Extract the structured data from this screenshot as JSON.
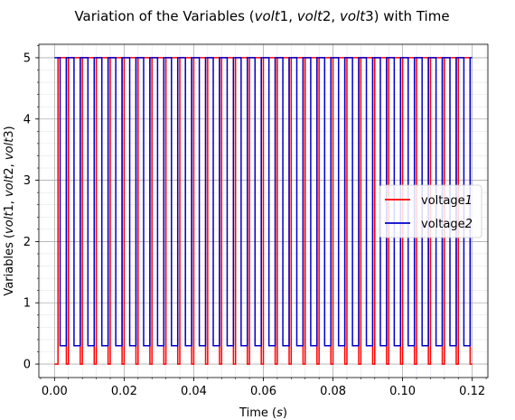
{
  "chart_data": {
    "type": "line",
    "title_parts": [
      "Variation of the Variables (",
      "volt",
      "1, ",
      "volt",
      "2, ",
      "volt",
      "3) with Time"
    ],
    "xlabel_parts": [
      "Time (",
      "s",
      ")"
    ],
    "ylabel_parts": [
      "Variables (",
      "volt",
      "1, ",
      "volt",
      "2, ",
      "volt",
      "3)"
    ],
    "xlim": [
      -0.0045,
      0.1245
    ],
    "ylim": [
      -0.22,
      5.22
    ],
    "xticks": [
      0.0,
      0.02,
      0.04,
      0.06,
      0.08,
      0.1,
      0.12
    ],
    "xtick_labels": [
      "0.00",
      "0.02",
      "0.04",
      "0.06",
      "0.08",
      "0.10",
      "0.12"
    ],
    "yticks": [
      0,
      1,
      2,
      3,
      4,
      5
    ],
    "ytick_labels": [
      "0",
      "1",
      "2",
      "3",
      "4",
      "5"
    ],
    "grid": true,
    "minor_grid": true,
    "legend_position": "center-right",
    "series": [
      {
        "name_parts": [
          "voltage",
          "1"
        ],
        "color": "#ff0000",
        "signal": {
          "kind": "pulse-train",
          "t_start": 0.0,
          "t_end": 0.12,
          "period": 0.004,
          "high": 5.0,
          "low": 0.0,
          "low_duration": 0.0006,
          "first_rise": 0.001
        }
      },
      {
        "name_parts": [
          "voltage",
          "2"
        ],
        "color": "#0000cc",
        "signal": {
          "kind": "pulse-train",
          "t_start": 0.0,
          "t_end": 0.12,
          "period": 0.004,
          "high": 5.0,
          "low": 0.3,
          "low_duration": 0.0018,
          "first_fall": 0.0016
        }
      }
    ]
  }
}
